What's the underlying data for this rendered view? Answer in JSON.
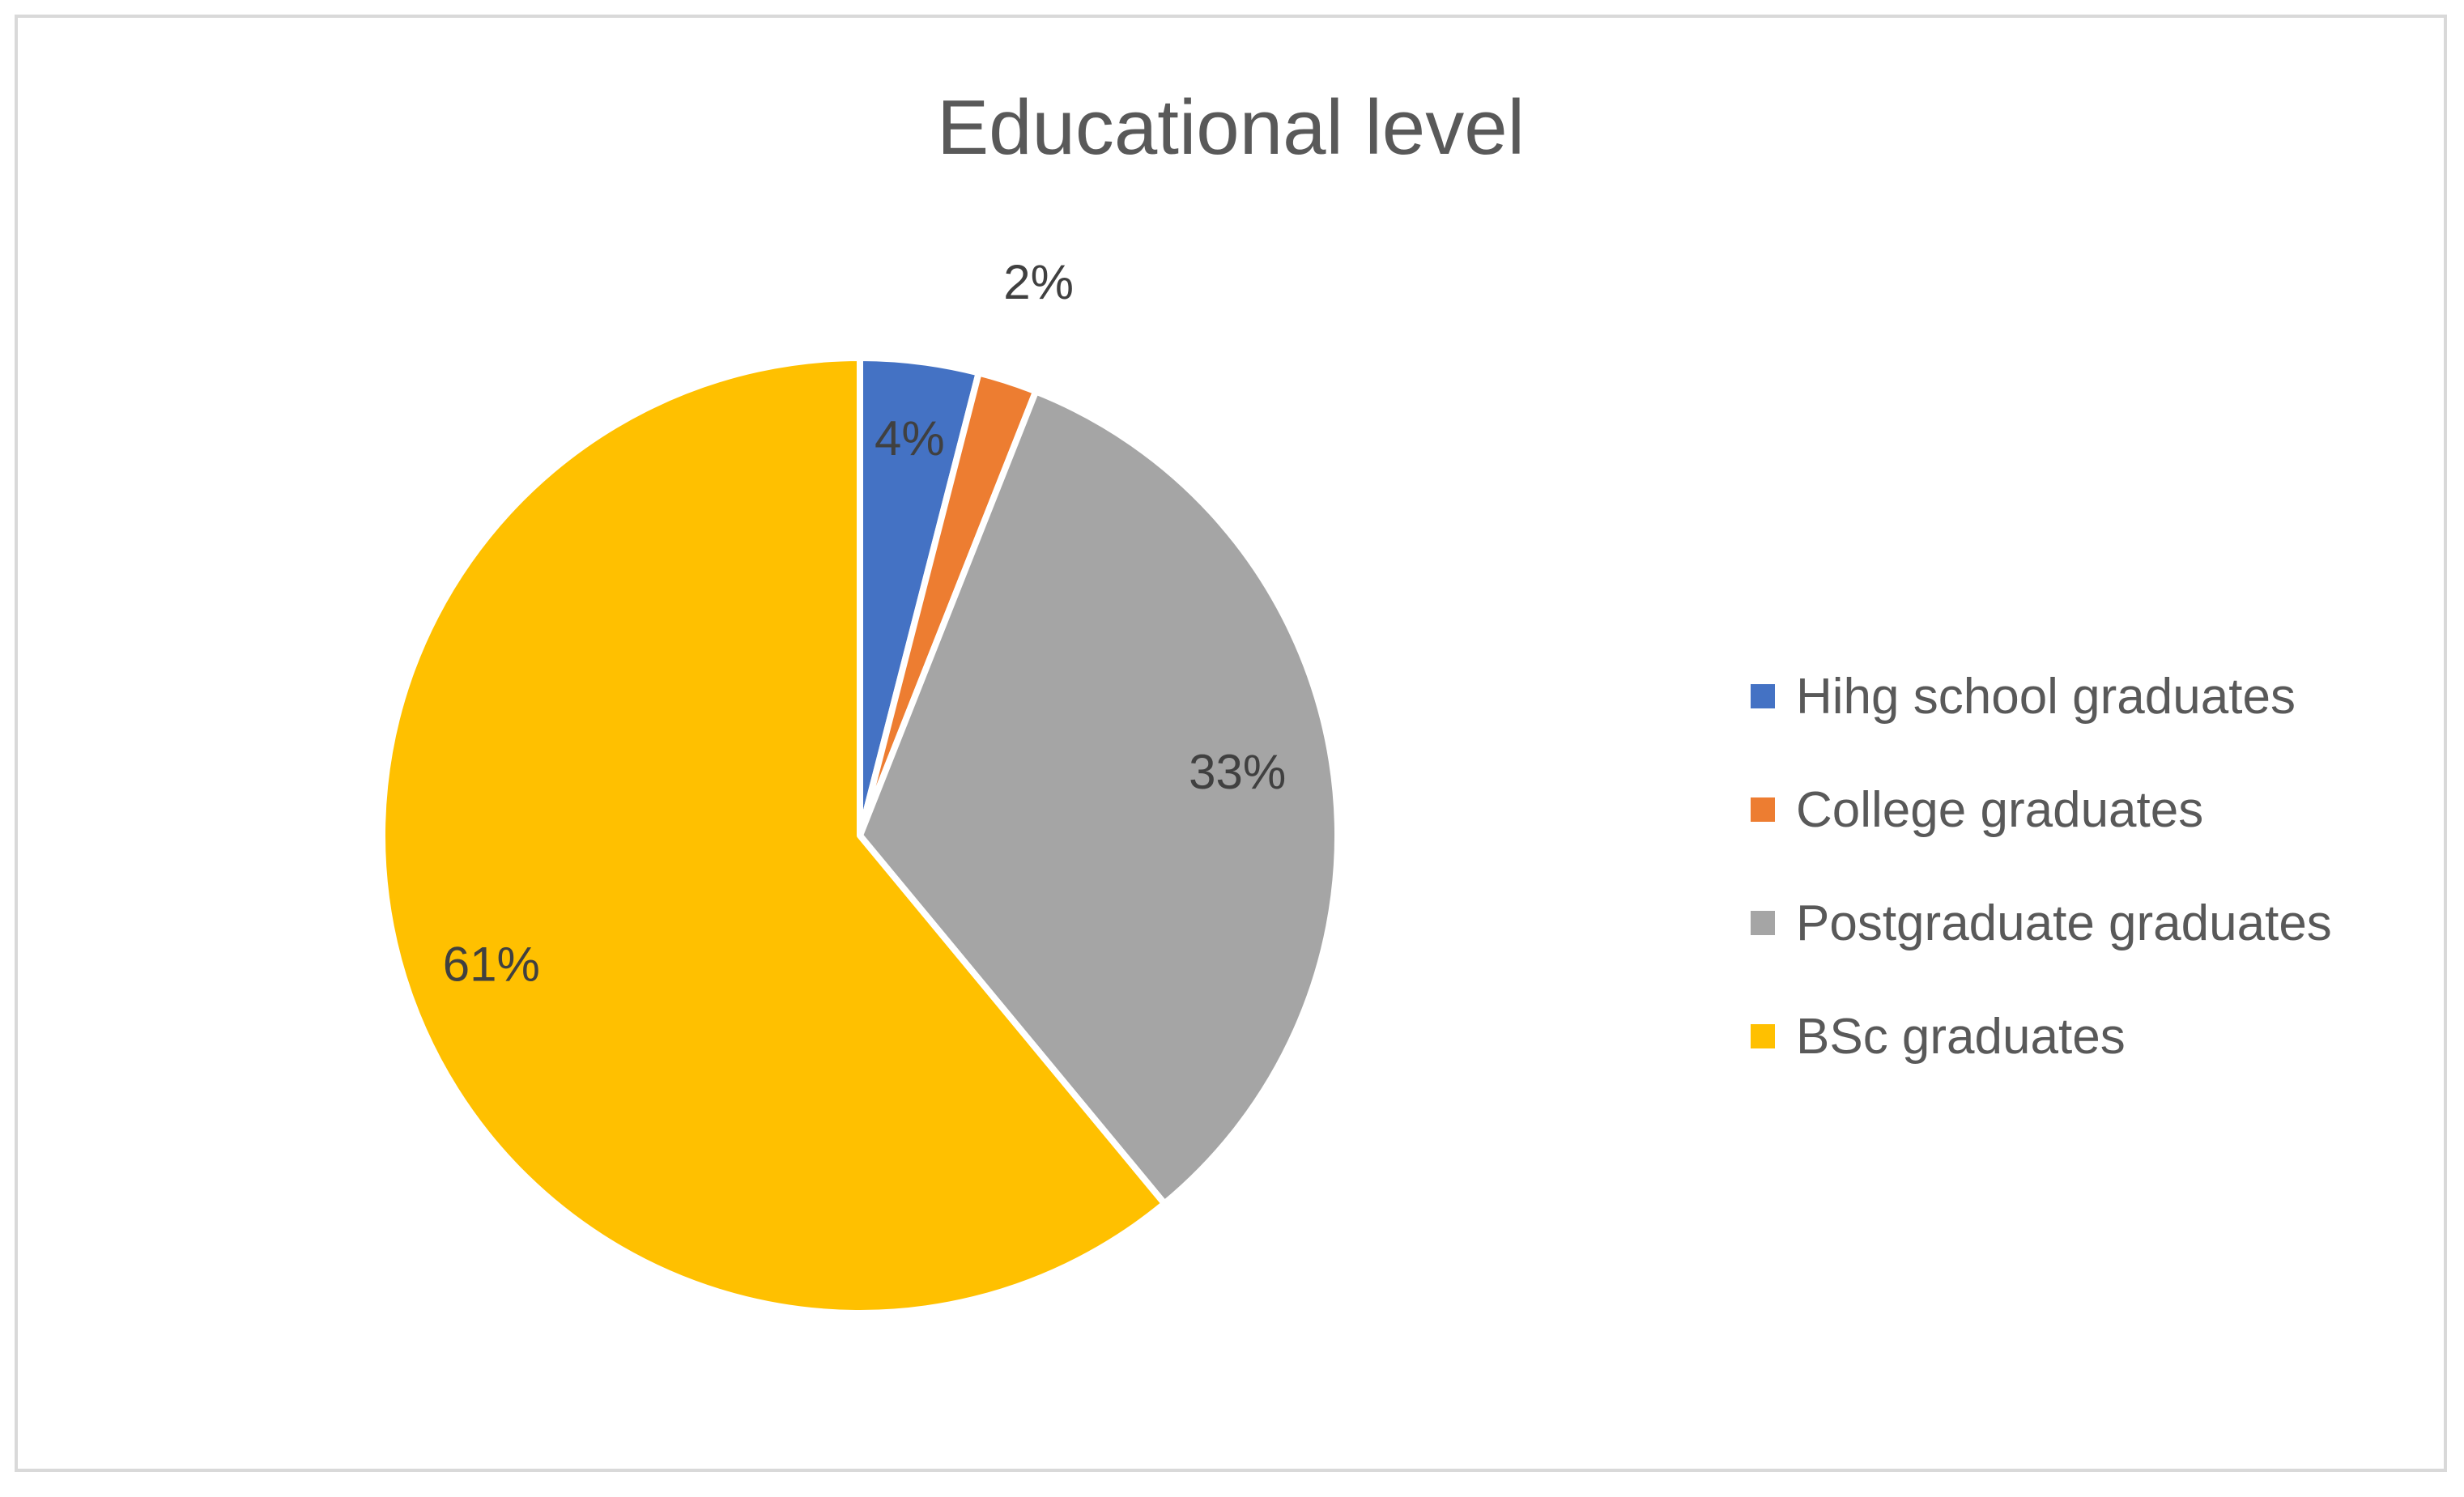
{
  "chart_data": {
    "type": "pie",
    "title": "Educational level",
    "categories": [
      "Hihg school graduates",
      "College graduates",
      "Postgraduate graduates",
      "BSc graduates"
    ],
    "values": [
      4,
      2,
      33,
      61
    ],
    "data_labels": [
      "4%",
      "2%",
      "33%",
      "61%"
    ],
    "colors": [
      "#4472c4",
      "#ed7d31",
      "#a5a5a5",
      "#ffc000"
    ],
    "legend_position": "right",
    "start_angle_deg": 0,
    "direction": "clockwise"
  }
}
